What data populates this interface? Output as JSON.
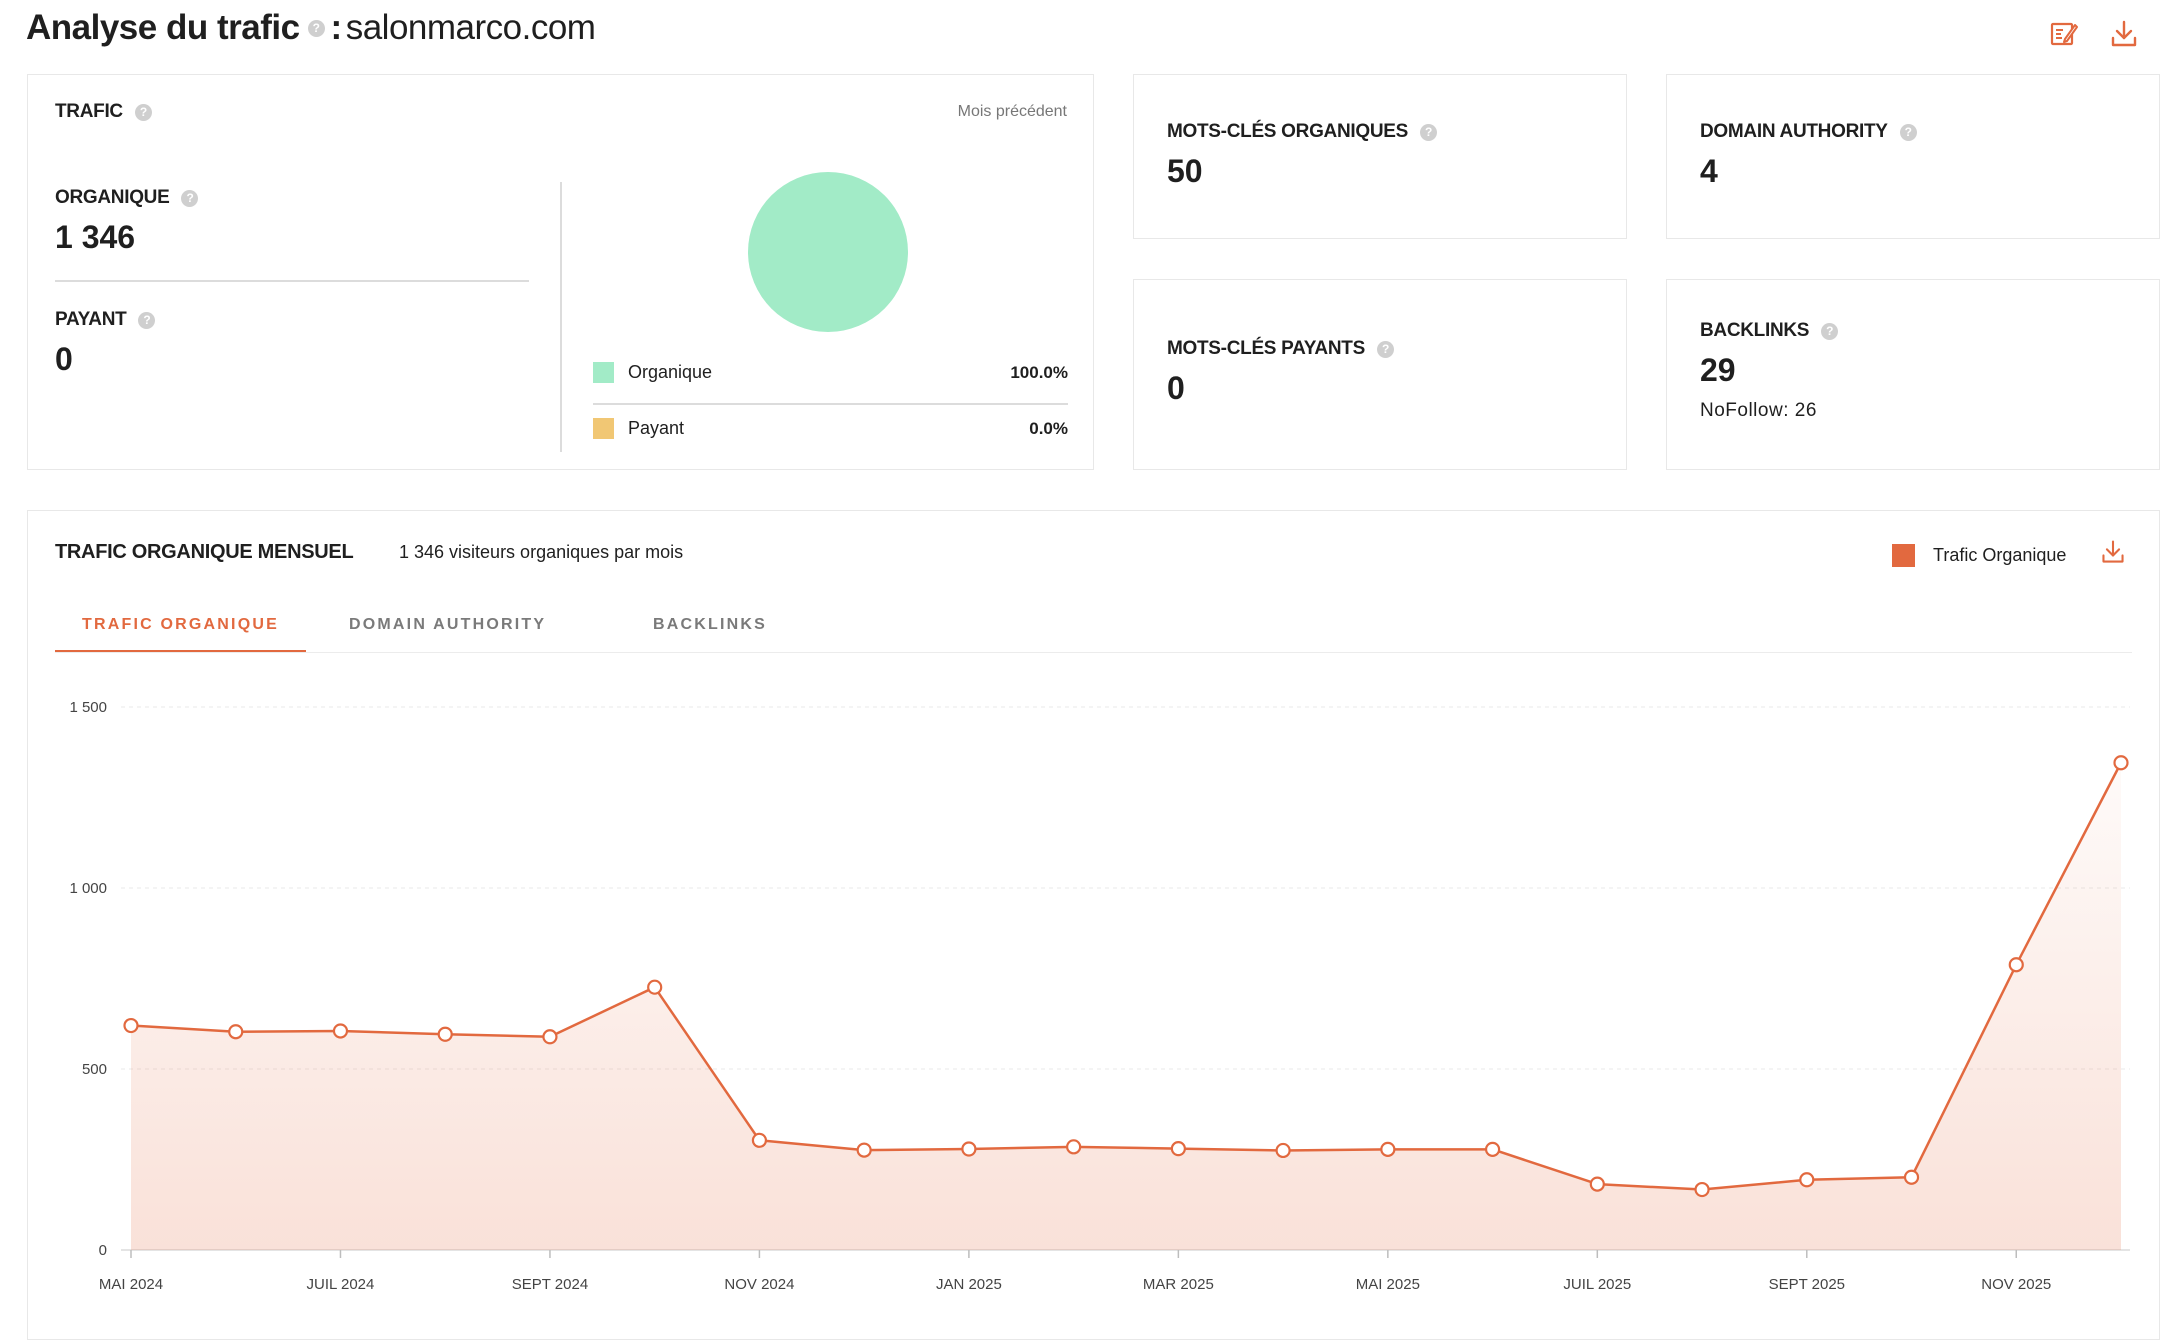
{
  "header": {
    "title": "Analyse du trafic",
    "separator": ":",
    "domain": "salonmarco.com",
    "help": "?"
  },
  "traffic_card": {
    "label": "TRAFIC",
    "period": "Mois précédent",
    "organic_label": "ORGANIQUE",
    "organic_value": "1 346",
    "paid_label": "PAYANT",
    "paid_value": "0",
    "legend": [
      {
        "name": "Organique",
        "pct": "100.0%",
        "color": "#a2ebc7"
      },
      {
        "name": "Payant",
        "pct": "0.0%",
        "color": "#f1c774"
      }
    ]
  },
  "stats": {
    "organic_keywords": {
      "label": "MOTS-CLÉS ORGANIQUES",
      "value": "50"
    },
    "domain_authority": {
      "label": "DOMAIN AUTHORITY",
      "value": "4"
    },
    "paid_keywords": {
      "label": "MOTS-CLÉS PAYANTS",
      "value": "0"
    },
    "backlinks": {
      "label": "BACKLINKS",
      "value": "29",
      "nofollow": "NoFollow: 26"
    }
  },
  "monthly": {
    "title": "TRAFIC ORGANIQUE MENSUEL",
    "subtitle": "1 346 visiteurs organiques par mois",
    "legend_label": "Trafic Organique",
    "tabs": [
      "TRAFIC ORGANIQUE",
      "DOMAIN AUTHORITY",
      "BACKLINKS"
    ],
    "active_tab": 0
  },
  "colors": {
    "accent": "#e2693f",
    "organic": "#a2ebc7",
    "paid": "#f1c774",
    "border": "#e8e8e8"
  },
  "chart_data": {
    "type": "area",
    "title": "",
    "xlabel": "",
    "ylabel": "",
    "ylim": [
      0,
      1500
    ],
    "yticks": [
      0,
      500,
      1000,
      1500
    ],
    "ytick_labels": [
      "0",
      "500",
      "1 000",
      "1 500"
    ],
    "x": [
      "2024-05",
      "2024-06",
      "2024-07",
      "2024-08",
      "2024-09",
      "2024-10",
      "2024-11",
      "2024-12",
      "2025-01",
      "2025-02",
      "2025-03",
      "2025-04",
      "2025-05",
      "2025-06",
      "2025-07",
      "2025-08",
      "2025-09",
      "2025-10",
      "2025-11",
      "2025-12"
    ],
    "xtick_labels": [
      "MAI 2024",
      "JUIL 2024",
      "SEPT 2024",
      "NOV 2024",
      "JAN 2025",
      "MAR 2025",
      "MAI 2025",
      "JUIL 2025",
      "SEPT 2025",
      "NOV 2025"
    ],
    "xtick_months": [
      "2024-05",
      "2024-07",
      "2024-09",
      "2024-11",
      "2025-01",
      "2025-03",
      "2025-05",
      "2025-07",
      "2025-09",
      "2025-11"
    ],
    "series": [
      {
        "name": "Trafic Organique",
        "values": [
          620,
          603,
          605,
          596,
          589,
          726,
          303,
          276,
          279,
          285,
          280,
          275,
          278,
          278,
          182,
          167,
          194,
          201,
          788,
          1346
        ]
      }
    ],
    "grid": true,
    "legend": "top-right"
  }
}
